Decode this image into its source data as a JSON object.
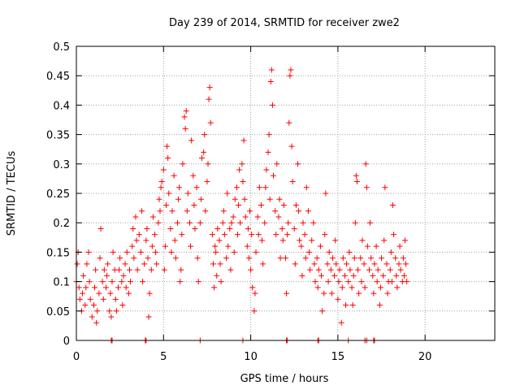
{
  "chart_data": {
    "type": "scatter",
    "title": "Day 239 of 2014, SRMTID for receiver zwe2",
    "xlabel": "GPS time / hours",
    "ylabel": "SRMTID / TECUs",
    "xlim": [
      0,
      24
    ],
    "ylim": [
      0,
      0.5
    ],
    "xticks": [
      0,
      5,
      10,
      15,
      20
    ],
    "yticks": [
      0,
      0.05,
      0.1,
      0.15,
      0.2,
      0.25,
      0.3,
      0.35,
      0.4,
      0.45,
      0.5
    ],
    "xtick_labels": [
      "0",
      "5",
      "10",
      "15",
      "20"
    ],
    "ytick_labels": [
      "0",
      "0.05",
      "0.1",
      "0.15",
      "0.2",
      "0.25",
      "0.3",
      "0.35",
      "0.4",
      "0.45",
      "0.5"
    ],
    "grid": true,
    "marker": "+",
    "color": "#ff0000",
    "series": [
      {
        "name": "SRMTID",
        "points": [
          [
            0.0,
            0.1
          ],
          [
            0.05,
            0.13
          ],
          [
            0.1,
            0.15
          ],
          [
            0.15,
            0.09
          ],
          [
            0.2,
            0.07
          ],
          [
            0.3,
            0.05
          ],
          [
            0.35,
            0.08
          ],
          [
            0.4,
            0.11
          ],
          [
            0.5,
            0.06
          ],
          [
            0.55,
            0.09
          ],
          [
            0.6,
            0.13
          ],
          [
            0.7,
            0.15
          ],
          [
            0.75,
            0.1
          ],
          [
            0.8,
            0.07
          ],
          [
            0.9,
            0.04
          ],
          [
            1.0,
            0.06
          ],
          [
            1.05,
            0.09
          ],
          [
            1.1,
            0.12
          ],
          [
            1.15,
            0.03
          ],
          [
            1.2,
            0.05
          ],
          [
            1.3,
            0.08
          ],
          [
            1.35,
            0.14
          ],
          [
            1.4,
            0.19
          ],
          [
            1.5,
            0.1
          ],
          [
            1.55,
            0.07
          ],
          [
            1.6,
            0.12
          ],
          [
            1.7,
            0.09
          ],
          [
            1.75,
            0.11
          ],
          [
            1.8,
            0.13
          ],
          [
            1.9,
            0.05
          ],
          [
            1.95,
            0.08
          ],
          [
            2.0,
            0.04
          ],
          [
            2.05,
            0.1
          ],
          [
            2.1,
            0.15
          ],
          [
            2.2,
            0.12
          ],
          [
            2.25,
            0.07
          ],
          [
            2.3,
            0.05
          ],
          [
            2.4,
            0.09
          ],
          [
            2.45,
            0.12
          ],
          [
            2.5,
            0.14
          ],
          [
            2.6,
            0.1
          ],
          [
            2.65,
            0.06
          ],
          [
            2.7,
            0.11
          ],
          [
            2.8,
            0.13
          ],
          [
            2.85,
            0.09
          ],
          [
            2.9,
            0.15
          ],
          [
            3.0,
            0.08
          ],
          [
            3.05,
            0.12
          ],
          [
            3.1,
            0.1
          ],
          [
            3.2,
            0.16
          ],
          [
            3.25,
            0.19
          ],
          [
            3.3,
            0.14
          ],
          [
            3.4,
            0.21
          ],
          [
            3.45,
            0.17
          ],
          [
            3.5,
            0.12
          ],
          [
            3.6,
            0.18
          ],
          [
            3.7,
            0.15
          ],
          [
            3.75,
            0.22
          ],
          [
            3.8,
            0.1
          ],
          [
            3.9,
            0.13
          ],
          [
            4.0,
            0.17
          ],
          [
            4.05,
            0.19
          ],
          [
            4.1,
            0.14
          ],
          [
            4.15,
            0.04
          ],
          [
            4.2,
            0.08
          ],
          [
            4.3,
            0.12
          ],
          [
            4.35,
            0.16
          ],
          [
            4.4,
            0.21
          ],
          [
            4.5,
            0.18
          ],
          [
            4.55,
            0.15
          ],
          [
            4.6,
            0.13
          ],
          [
            4.7,
            0.2
          ],
          [
            4.75,
            0.24
          ],
          [
            4.8,
            0.22
          ],
          [
            4.85,
            0.26
          ],
          [
            4.9,
            0.27
          ],
          [
            5.0,
            0.29
          ],
          [
            5.05,
            0.12
          ],
          [
            5.1,
            0.16
          ],
          [
            5.15,
            0.23
          ],
          [
            5.2,
            0.33
          ],
          [
            5.25,
            0.31
          ],
          [
            5.3,
            0.25
          ],
          [
            5.4,
            0.19
          ],
          [
            5.45,
            0.15
          ],
          [
            5.5,
            0.22
          ],
          [
            5.6,
            0.28
          ],
          [
            5.65,
            0.17
          ],
          [
            5.7,
            0.14
          ],
          [
            5.8,
            0.2
          ],
          [
            5.85,
            0.24
          ],
          [
            5.9,
            0.26
          ],
          [
            5.95,
            0.1
          ],
          [
            6.0,
            0.12
          ],
          [
            6.05,
            0.18
          ],
          [
            6.1,
            0.3
          ],
          [
            6.2,
            0.38
          ],
          [
            6.25,
            0.36
          ],
          [
            6.3,
            0.39
          ],
          [
            6.35,
            0.22
          ],
          [
            6.4,
            0.25
          ],
          [
            6.5,
            0.2
          ],
          [
            6.55,
            0.16
          ],
          [
            6.6,
            0.34
          ],
          [
            6.7,
            0.28
          ],
          [
            6.75,
            0.23
          ],
          [
            6.8,
            0.19
          ],
          [
            6.9,
            0.26
          ],
          [
            6.95,
            0.14
          ],
          [
            7.0,
            0.1
          ],
          [
            7.1,
            0.2
          ],
          [
            7.15,
            0.24
          ],
          [
            7.2,
            0.31
          ],
          [
            7.3,
            0.32
          ],
          [
            7.35,
            0.35
          ],
          [
            7.4,
            0.22
          ],
          [
            7.5,
            0.27
          ],
          [
            7.55,
            0.3
          ],
          [
            7.6,
            0.41
          ],
          [
            7.65,
            0.43
          ],
          [
            7.7,
            0.37
          ],
          [
            7.8,
            0.18
          ],
          [
            7.85,
            0.13
          ],
          [
            7.9,
            0.09
          ],
          [
            7.95,
            0.16
          ],
          [
            8.0,
            0.15
          ],
          [
            8.05,
            0.11
          ],
          [
            8.1,
            0.19
          ],
          [
            8.2,
            0.17
          ],
          [
            8.25,
            0.13
          ],
          [
            8.3,
            0.1
          ],
          [
            8.4,
            0.2
          ],
          [
            8.45,
            0.22
          ],
          [
            8.5,
            0.18
          ],
          [
            8.6,
            0.14
          ],
          [
            8.65,
            0.25
          ],
          [
            8.7,
            0.16
          ],
          [
            8.8,
            0.19
          ],
          [
            8.85,
            0.12
          ],
          [
            8.9,
            0.2
          ],
          [
            9.0,
            0.21
          ],
          [
            9.05,
            0.15
          ],
          [
            9.1,
            0.24
          ],
          [
            9.2,
            0.26
          ],
          [
            9.25,
            0.18
          ],
          [
            9.3,
            0.23
          ],
          [
            9.35,
            0.29
          ],
          [
            9.4,
            0.2
          ],
          [
            9.5,
            0.3
          ],
          [
            9.55,
            0.27
          ],
          [
            9.6,
            0.34
          ],
          [
            9.65,
            0.24
          ],
          [
            9.7,
            0.21
          ],
          [
            9.8,
            0.16
          ],
          [
            9.85,
            0.19
          ],
          [
            9.9,
            0.14
          ],
          [
            9.95,
            0.22
          ],
          [
            10.0,
            0.12
          ],
          [
            10.05,
            0.18
          ],
          [
            10.1,
            0.09
          ],
          [
            10.2,
            0.05
          ],
          [
            10.25,
            0.08
          ],
          [
            10.3,
            0.15
          ],
          [
            10.4,
            0.21
          ],
          [
            10.45,
            0.18
          ],
          [
            10.5,
            0.26
          ],
          [
            10.6,
            0.23
          ],
          [
            10.65,
            0.17
          ],
          [
            10.7,
            0.13
          ],
          [
            10.8,
            0.2
          ],
          [
            10.85,
            0.26
          ],
          [
            10.9,
            0.29
          ],
          [
            11.0,
            0.32
          ],
          [
            11.05,
            0.35
          ],
          [
            11.1,
            0.24
          ],
          [
            11.15,
            0.44
          ],
          [
            11.2,
            0.46
          ],
          [
            11.25,
            0.4
          ],
          [
            11.3,
            0.28
          ],
          [
            11.4,
            0.22
          ],
          [
            11.45,
            0.18
          ],
          [
            11.5,
            0.3
          ],
          [
            11.6,
            0.21
          ],
          [
            11.65,
            0.24
          ],
          [
            11.7,
            0.14
          ],
          [
            11.8,
            0.19
          ],
          [
            11.85,
            0.17
          ],
          [
            11.9,
            0.23
          ],
          [
            12.0,
            0.14
          ],
          [
            12.05,
            0.08
          ],
          [
            12.1,
            0.18
          ],
          [
            12.15,
            0.2
          ],
          [
            12.2,
            0.37
          ],
          [
            12.25,
            0.45
          ],
          [
            12.3,
            0.46
          ],
          [
            12.35,
            0.33
          ],
          [
            12.4,
            0.27
          ],
          [
            12.5,
            0.19
          ],
          [
            12.55,
            0.13
          ],
          [
            12.6,
            0.23
          ],
          [
            12.7,
            0.3
          ],
          [
            12.75,
            0.22
          ],
          [
            12.8,
            0.17
          ],
          [
            12.9,
            0.16
          ],
          [
            12.95,
            0.11
          ],
          [
            13.0,
            0.2
          ],
          [
            13.1,
            0.18
          ],
          [
            13.15,
            0.14
          ],
          [
            13.2,
            0.26
          ],
          [
            13.3,
            0.22
          ],
          [
            13.35,
            0.15
          ],
          [
            13.4,
            0.12
          ],
          [
            13.5,
            0.17
          ],
          [
            13.6,
            0.2
          ],
          [
            13.65,
            0.13
          ],
          [
            13.7,
            0.1
          ],
          [
            13.8,
            0.14
          ],
          [
            13.85,
            0.09
          ],
          [
            13.9,
            0.12
          ],
          [
            14.0,
            0.16
          ],
          [
            14.05,
            0.11
          ],
          [
            14.1,
            0.05
          ],
          [
            14.2,
            0.08
          ],
          [
            14.25,
            0.18
          ],
          [
            14.3,
            0.25
          ],
          [
            14.4,
            0.13
          ],
          [
            14.45,
            0.1
          ],
          [
            14.5,
            0.15
          ],
          [
            14.6,
            0.12
          ],
          [
            14.65,
            0.08
          ],
          [
            14.7,
            0.14
          ],
          [
            14.8,
            0.11
          ],
          [
            14.85,
            0.17
          ],
          [
            14.9,
            0.13
          ],
          [
            15.0,
            0.07
          ],
          [
            15.05,
            0.1
          ],
          [
            15.1,
            0.12
          ],
          [
            15.2,
            0.03
          ],
          [
            15.25,
            0.09
          ],
          [
            15.3,
            0.14
          ],
          [
            15.4,
            0.11
          ],
          [
            15.45,
            0.06
          ],
          [
            15.5,
            0.13
          ],
          [
            15.6,
            0.1
          ],
          [
            15.65,
            0.15
          ],
          [
            15.7,
            0.12
          ],
          [
            15.8,
            0.09
          ],
          [
            15.85,
            0.06
          ],
          [
            15.9,
            0.11
          ],
          [
            15.95,
            0.14
          ],
          [
            16.0,
            0.2
          ],
          [
            16.05,
            0.28
          ],
          [
            16.1,
            0.27
          ],
          [
            16.15,
            0.12
          ],
          [
            16.2,
            0.08
          ],
          [
            16.3,
            0.14
          ],
          [
            16.35,
            0.1
          ],
          [
            16.4,
            0.17
          ],
          [
            16.5,
            0.13
          ],
          [
            16.55,
            0.09
          ],
          [
            16.6,
            0.3
          ],
          [
            16.65,
            0.26
          ],
          [
            16.7,
            0.16
          ],
          [
            16.8,
            0.12
          ],
          [
            16.85,
            0.2
          ],
          [
            16.9,
            0.14
          ],
          [
            17.0,
            0.11
          ],
          [
            17.05,
            0.08
          ],
          [
            17.1,
            0.13
          ],
          [
            17.2,
            0.16
          ],
          [
            17.25,
            0.1
          ],
          [
            17.3,
            0.12
          ],
          [
            17.4,
            0.06
          ],
          [
            17.45,
            0.09
          ],
          [
            17.5,
            0.14
          ],
          [
            17.6,
            0.11
          ],
          [
            17.65,
            0.17
          ],
          [
            17.7,
            0.26
          ],
          [
            17.8,
            0.13
          ],
          [
            17.85,
            0.08
          ],
          [
            17.9,
            0.1
          ],
          [
            18.0,
            0.12
          ],
          [
            18.05,
            0.15
          ],
          [
            18.1,
            0.1
          ],
          [
            18.15,
            0.23
          ],
          [
            18.2,
            0.18
          ],
          [
            18.3,
            0.14
          ],
          [
            18.35,
            0.11
          ],
          [
            18.4,
            0.09
          ],
          [
            18.5,
            0.13
          ],
          [
            18.55,
            0.16
          ],
          [
            18.6,
            0.12
          ],
          [
            18.7,
            0.1
          ],
          [
            18.75,
            0.14
          ],
          [
            18.8,
            0.11
          ],
          [
            18.85,
            0.17
          ],
          [
            18.9,
            0.13
          ],
          [
            18.95,
            0.1
          ],
          [
            2.0,
            0.0
          ],
          [
            2.05,
            0.0
          ],
          [
            3.95,
            0.0
          ],
          [
            4.0,
            0.0
          ],
          [
            7.1,
            0.0
          ],
          [
            9.55,
            0.0
          ],
          [
            12.05,
            0.0
          ],
          [
            12.1,
            0.0
          ],
          [
            13.85,
            0.0
          ],
          [
            13.9,
            0.0
          ],
          [
            15.6,
            0.0
          ],
          [
            16.55,
            0.0
          ],
          [
            16.65,
            0.0
          ],
          [
            17.05,
            0.0
          ],
          [
            17.1,
            0.0
          ]
        ]
      }
    ]
  }
}
